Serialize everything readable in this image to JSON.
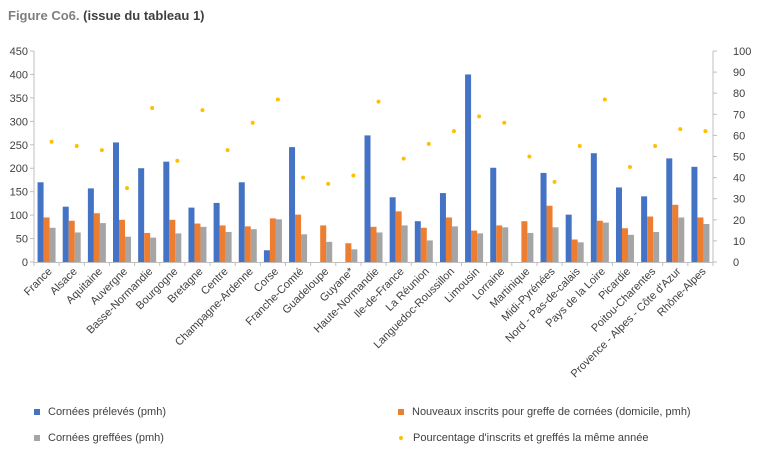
{
  "title": {
    "part1": "Figure Co6.",
    "part2": "(issue du tableau 1)"
  },
  "colors": {
    "s1": "#4472c4",
    "s2": "#ed7d31",
    "s3": "#a5a5a5",
    "s4": "#ffc000",
    "axis": "#bfbfbf",
    "grid": "#d9d9d9",
    "text": "#404040"
  },
  "chart_data": {
    "type": "bar",
    "categories": [
      "France",
      "Alsace",
      "Aquitaine",
      "Auvergne",
      "Basse-Normandie",
      "Bourgogne",
      "Bretagne",
      "Centre",
      "Champagne-Ardenne",
      "Corse",
      "Franche-Comté",
      "Guadeloupe",
      "Guyane*",
      "Haute-Normandie",
      "Ile-de-France",
      "La Réunion",
      "Languedoc-Roussillon",
      "Limousin",
      "Lorraine",
      "Martinique",
      "Midi-Pyrénées",
      "Nord - Pas-de-calais",
      "Pays de la Loire",
      "Picardie",
      "Poitou-Charentes",
      "Provence - Alpes - Côte d'Azur",
      "Rhône-Alpes"
    ],
    "series": [
      {
        "name": "Cornées prélevés (pmh)",
        "axis": "left",
        "kind": "bar",
        "values": [
          170,
          118,
          157,
          255,
          200,
          214,
          116,
          126,
          170,
          25,
          245,
          0,
          0,
          270,
          138,
          87,
          147,
          400,
          201,
          0,
          190,
          101,
          232,
          159,
          140,
          221,
          203
        ]
      },
      {
        "name": "Nouveaux inscrits pour greffe de cornées (domicile, pmh)",
        "axis": "left",
        "kind": "bar",
        "values": [
          95,
          88,
          104,
          90,
          62,
          90,
          82,
          78,
          76,
          93,
          101,
          78,
          40,
          75,
          108,
          73,
          95,
          67,
          78,
          87,
          120,
          48,
          88,
          72,
          97,
          122,
          95
        ]
      },
      {
        "name": "Cornées greffées (pmh)",
        "axis": "left",
        "kind": "bar",
        "values": [
          73,
          63,
          83,
          54,
          52,
          61,
          75,
          64,
          70,
          91,
          59,
          43,
          27,
          63,
          78,
          46,
          76,
          61,
          74,
          62,
          74,
          42,
          84,
          58,
          64,
          95,
          81
        ]
      },
      {
        "name": "Pourcentage d'inscrits et greffés la même année",
        "axis": "right",
        "kind": "scatter",
        "values": [
          57,
          55,
          53,
          35,
          73,
          48,
          72,
          53,
          66,
          77,
          40,
          37,
          41,
          76,
          49,
          56,
          62,
          69,
          66,
          50,
          38,
          55,
          77,
          45,
          55,
          63,
          62
        ]
      }
    ],
    "yaxis_left": {
      "min": 0,
      "max": 450,
      "step": 50,
      "ticks": [
        "0",
        "50",
        "100",
        "150",
        "200",
        "250",
        "300",
        "350",
        "400",
        "450"
      ]
    },
    "yaxis_right": {
      "min": 0,
      "max": 100,
      "step": 10,
      "ticks": [
        "0",
        "10",
        "20",
        "30",
        "40",
        "50",
        "60",
        "70",
        "80",
        "90",
        "100"
      ]
    },
    "grid": false,
    "legend_position": "bottom"
  }
}
